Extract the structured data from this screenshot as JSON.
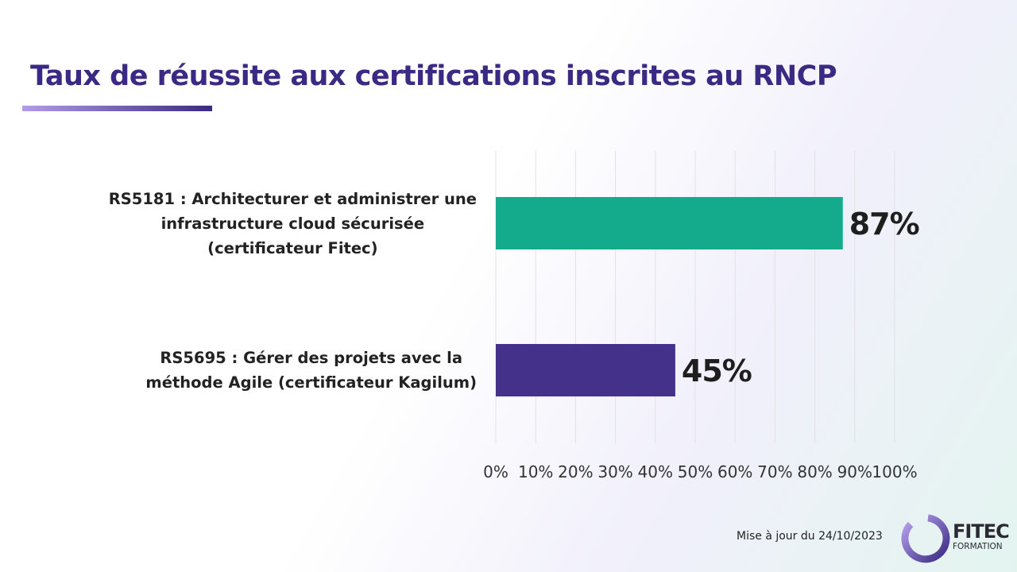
{
  "chart_data": {
    "type": "bar",
    "orientation": "horizontal",
    "title": "Taux de réussite aux certifications inscrites au RNCP",
    "categories": [
      [
        "RS5181  : Architecturer et administrer une",
        "infrastructure cloud sécurisée",
        "(certificateur Fitec)"
      ],
      [
        "RS5695  : Gérer des projets avec la",
        "méthode Agile (certificateur Kagilum)"
      ]
    ],
    "values": [
      87,
      45
    ],
    "data_labels": [
      "87%",
      "45%"
    ],
    "colors": [
      "#13ab8c",
      "#43318a"
    ],
    "xlim": [
      0,
      100
    ],
    "xticks": [
      "0%",
      "10%",
      "20%",
      "30%",
      "40%",
      "50%",
      "60%",
      "70%",
      "80%",
      "90%",
      "100%"
    ],
    "grid": true,
    "xlabel": "",
    "ylabel": ""
  },
  "footer": {
    "update": "Mise à jour du 24/10/2023"
  },
  "logo": {
    "name": "FITEC",
    "sub": "FORMATION"
  }
}
